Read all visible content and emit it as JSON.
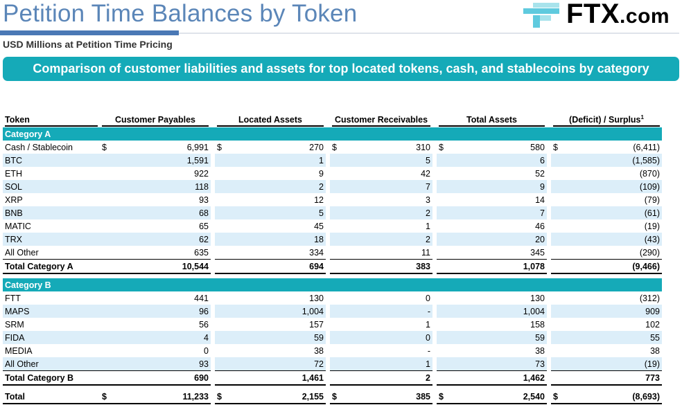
{
  "header": {
    "title": "Petition Time Balances by Token",
    "subtitle": "USD Millions at Petition Time Pricing",
    "banner": "Comparison of customer liabilities and assets for top located tokens, cash, and stablecoins by category",
    "logo_text": "FTX",
    "logo_domain": ".com",
    "logo_color": "#000000",
    "accent_color": "#15aab8"
  },
  "table": {
    "columns": {
      "token": "Token",
      "payables": "Customer Payables",
      "located": "Located Assets",
      "receivables": "Customer Receivables",
      "total_assets": "Total Assets",
      "deficit": "(Deficit) / Surplus",
      "deficit_note": "1"
    },
    "currency": "$",
    "category_a": {
      "label": "Category A",
      "rows": [
        {
          "token": "Cash / Stablecoin",
          "payables": "6,991",
          "located": "270",
          "receivables": "310",
          "total": "580",
          "deficit": "(6,411)"
        },
        {
          "token": "BTC",
          "payables": "1,591",
          "located": "1",
          "receivables": "5",
          "total": "6",
          "deficit": "(1,585)"
        },
        {
          "token": "ETH",
          "payables": "922",
          "located": "9",
          "receivables": "42",
          "total": "52",
          "deficit": "(870)"
        },
        {
          "token": "SOL",
          "payables": "118",
          "located": "2",
          "receivables": "7",
          "total": "9",
          "deficit": "(109)"
        },
        {
          "token": "XRP",
          "payables": "93",
          "located": "12",
          "receivables": "3",
          "total": "14",
          "deficit": "(79)"
        },
        {
          "token": "BNB",
          "payables": "68",
          "located": "5",
          "receivables": "2",
          "total": "7",
          "deficit": "(61)"
        },
        {
          "token": "MATIC",
          "payables": "65",
          "located": "45",
          "receivables": "1",
          "total": "46",
          "deficit": "(19)"
        },
        {
          "token": "TRX",
          "payables": "62",
          "located": "18",
          "receivables": "2",
          "total": "20",
          "deficit": "(43)"
        },
        {
          "token": "All Other",
          "payables": "635",
          "located": "334",
          "receivables": "11",
          "total": "345",
          "deficit": "(290)"
        }
      ],
      "total": {
        "token": "Total Category A",
        "payables": "10,544",
        "located": "694",
        "receivables": "383",
        "total": "1,078",
        "deficit": "(9,466)"
      }
    },
    "category_b": {
      "label": "Category B",
      "rows": [
        {
          "token": "FTT",
          "payables": "441",
          "located": "130",
          "receivables": "0",
          "total": "130",
          "deficit": "(312)"
        },
        {
          "token": "MAPS",
          "payables": "96",
          "located": "1,004",
          "receivables": "-",
          "total": "1,004",
          "deficit": "909"
        },
        {
          "token": "SRM",
          "payables": "56",
          "located": "157",
          "receivables": "1",
          "total": "158",
          "deficit": "102"
        },
        {
          "token": "FIDA",
          "payables": "4",
          "located": "59",
          "receivables": "0",
          "total": "59",
          "deficit": "55"
        },
        {
          "token": "MEDIA",
          "payables": "0",
          "located": "38",
          "receivables": "-",
          "total": "38",
          "deficit": "38"
        },
        {
          "token": "All Other",
          "payables": "93",
          "located": "72",
          "receivables": "1",
          "total": "73",
          "deficit": "(19)"
        }
      ],
      "total": {
        "token": "Total Category B",
        "payables": "690",
        "located": "1,461",
        "receivables": "2",
        "total": "1,462",
        "deficit": "773"
      }
    },
    "grand_total": {
      "token": "Total",
      "payables": "11,233",
      "located": "2,155",
      "receivables": "385",
      "total": "2,540",
      "deficit": "(8,693)"
    }
  }
}
